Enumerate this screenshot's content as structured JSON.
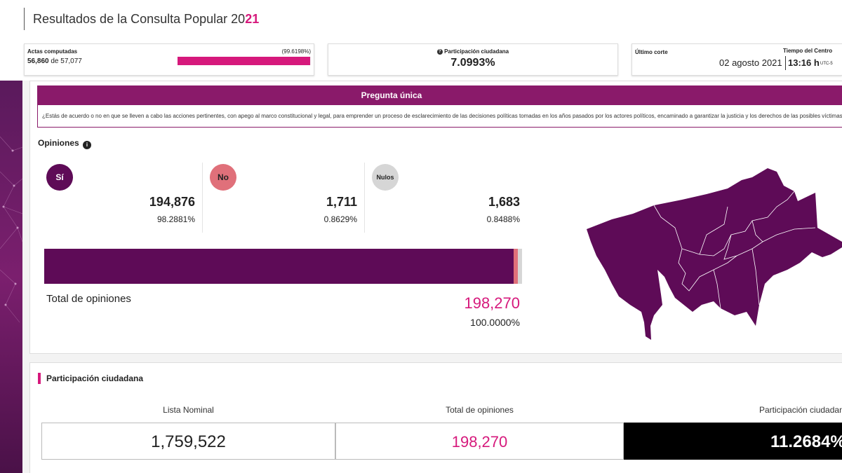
{
  "header": {
    "title_prefix": "Resultados de la Consulta Popular 20",
    "title_accent": "21"
  },
  "actas": {
    "label": "Actas computadas",
    "computed": "56,860",
    "of_text": "de",
    "total": "57,077",
    "percent_text": "(99.6198%)",
    "progress_fraction": 0.996198
  },
  "participacion_top": {
    "label": "Participación ciudadana",
    "value": "7.0993%"
  },
  "corte": {
    "label": "Último corte",
    "tiempo_label": "Tiempo del Centro",
    "date": "02 agosto 2021",
    "time": "13:16 h",
    "tz": "UTC-5"
  },
  "pregunta": {
    "title": "Pregunta única",
    "text": "¿Estás de acuerdo o no en que se lleven a cabo las acciones pertinentes, con apego al marco constitucional y legal, para emprender un proceso de esclarecimiento de las decisiones políticas tomadas en los años pasados por los actores políticos, encaminado a garantizar la justicia y los derechos de las posibles víctimas?"
  },
  "opiniones": {
    "title": "Opiniones",
    "options": [
      {
        "label": "Sí",
        "votes": "194,876",
        "percent": "98.2881%",
        "share": 98.2881,
        "color": "#5e0b57",
        "text_color": "#ffffff"
      },
      {
        "label": "No",
        "votes": "1,711",
        "percent": "0.8629%",
        "share": 0.8629,
        "color": "#e0707a",
        "text_color": "#222222"
      },
      {
        "label": "Nulos",
        "votes": "1,683",
        "percent": "0.8488%",
        "share": 0.8488,
        "color": "#d6d6d6",
        "text_color": "#222222"
      }
    ],
    "total_label": "Total de opiniones",
    "total_value": "198,270",
    "total_percent": "100.0000%"
  },
  "map": {
    "fill_color": "#5e0b57",
    "border_color": "#ffffff"
  },
  "participacion": {
    "title": "Participación ciudadana",
    "lista_label": "Lista Nominal",
    "lista_value": "1,759,522",
    "total_label": "Total de opiniones",
    "total_value": "198,270",
    "part_label": "Participación ciudadana",
    "part_value": "11.2684%"
  }
}
